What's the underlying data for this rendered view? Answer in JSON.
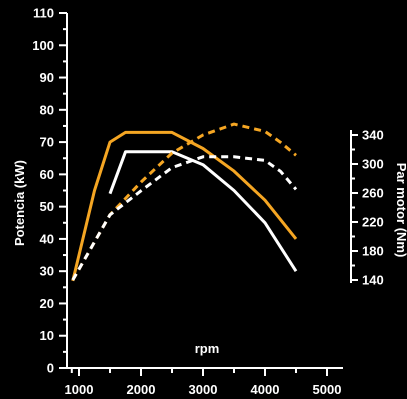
{
  "chart_data": {
    "type": "line",
    "xlabel": "rpm",
    "ylabel": "Potencia (kW)",
    "y2label": "Par motor (Nm)",
    "xlim": [
      800,
      5000
    ],
    "ylim": [
      0,
      110
    ],
    "y2lim": [
      140,
      340
    ],
    "x_ticks": [
      1000,
      2000,
      3000,
      4000,
      5000
    ],
    "y_ticks": [
      0,
      10,
      20,
      30,
      40,
      50,
      60,
      70,
      80,
      90,
      100,
      110
    ],
    "y2_ticks": [
      140,
      180,
      220,
      260,
      300,
      340
    ],
    "grid": false,
    "colors": {
      "background": "#000000",
      "orange": "#f5a623",
      "white": "#ffffff"
    },
    "series": [
      {
        "kind": "power",
        "axis": "left",
        "style": "solid",
        "color": "#f5a623",
        "x": [
          900,
          1250,
          1500,
          1750,
          2000,
          2500,
          3000,
          3500,
          4000,
          4500
        ],
        "y": [
          27,
          55,
          70,
          73,
          73,
          73,
          68,
          61,
          52,
          40
        ]
      },
      {
        "kind": "power",
        "axis": "left",
        "style": "solid",
        "color": "#ffffff",
        "x": [
          1500,
          1750,
          2000,
          2500,
          3000,
          3500,
          4000,
          4500
        ],
        "y": [
          54,
          67,
          67,
          67,
          63,
          55,
          45,
          30
        ]
      },
      {
        "kind": "torque",
        "axis": "right",
        "style": "dashed",
        "color": "#f5a623",
        "x": [
          900,
          1500,
          2000,
          2500,
          3000,
          3500,
          4000,
          4250,
          4500
        ],
        "y": [
          140,
          230,
          275,
          315,
          340,
          355,
          345,
          330,
          312
        ]
      },
      {
        "kind": "torque",
        "axis": "right",
        "style": "dashed",
        "color": "#ffffff",
        "x": [
          900,
          1500,
          2000,
          2500,
          3000,
          3500,
          4000,
          4250,
          4500
        ],
        "y": [
          140,
          230,
          263,
          295,
          310,
          310,
          305,
          290,
          265
        ]
      }
    ]
  }
}
